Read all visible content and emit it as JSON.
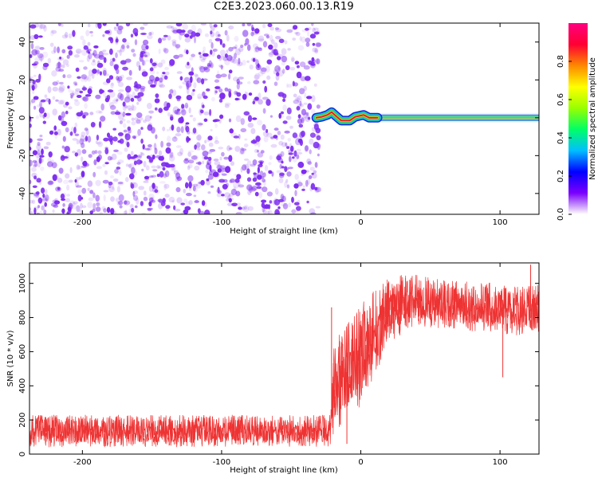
{
  "title": "C2E3.2023.060.00.13.R19",
  "colors": {
    "noise": "#7d2bf0",
    "signal_line": "#ee3333",
    "band_red": "#e8162b",
    "band_green": "#22c466",
    "band_blue": "#0a2cd8"
  },
  "chart_data": [
    {
      "type": "heatmap",
      "title": "",
      "xlabel": "Height of straight line (km)",
      "ylabel": "Frequency (Hz)",
      "xlim": [
        -238,
        128
      ],
      "ylim": [
        -51,
        50
      ],
      "xticks": [
        -200,
        -100,
        0,
        100
      ],
      "yticks": [
        -40,
        -20,
        0,
        20,
        40
      ],
      "description_regions": {
        "noise_x_range": [
          -238,
          -32
        ],
        "signal_x_range": [
          -32,
          128
        ],
        "signal_frequency_hz": 0
      },
      "colorbar": {
        "label": "Normalized spectral amplitude",
        "range": [
          0.0,
          1.0
        ],
        "ticks": [
          0.0,
          0.2,
          0.4,
          0.6,
          0.8
        ],
        "colormap": [
          "#ffffff",
          "#7b00ff",
          "#0000ff",
          "#00bfff",
          "#00ff66",
          "#99ff00",
          "#ffff00",
          "#ff8800",
          "#ff0033",
          "#ff0080"
        ]
      },
      "signal_wiggle": [
        {
          "x": -32,
          "y": 0
        },
        {
          "x": -28,
          "y": 0.5
        },
        {
          "x": -24,
          "y": 1.5
        },
        {
          "x": -21,
          "y": 3
        },
        {
          "x": -18,
          "y": 1
        },
        {
          "x": -14,
          "y": -1.5
        },
        {
          "x": -8,
          "y": -1.5
        },
        {
          "x": -4,
          "y": 0.5
        },
        {
          "x": 2,
          "y": 1.5
        },
        {
          "x": 6,
          "y": 0
        },
        {
          "x": 12,
          "y": 0
        },
        {
          "x": 128,
          "y": 0
        }
      ]
    },
    {
      "type": "line",
      "title": "",
      "xlabel": "Height of straight line (km)",
      "ylabel": "SNR (10 * v/v)",
      "xlim": [
        -238,
        128
      ],
      "ylim": [
        0,
        1120
      ],
      "xticks": [
        -200,
        -100,
        0,
        100
      ],
      "yticks": [
        0,
        200,
        400,
        600,
        800,
        1000
      ],
      "envelope": [
        {
          "x": -238,
          "low": 40,
          "high": 230
        },
        {
          "x": -22,
          "low": 40,
          "high": 230
        },
        {
          "x": -19,
          "low": 120,
          "high": 700
        },
        {
          "x": -10,
          "low": 180,
          "high": 780
        },
        {
          "x": 0,
          "low": 280,
          "high": 880
        },
        {
          "x": 10,
          "low": 460,
          "high": 960
        },
        {
          "x": 20,
          "low": 620,
          "high": 1030
        },
        {
          "x": 35,
          "low": 720,
          "high": 1060
        },
        {
          "x": 60,
          "low": 740,
          "high": 1020
        },
        {
          "x": 100,
          "low": 700,
          "high": 1000
        },
        {
          "x": 128,
          "low": 680,
          "high": 990
        }
      ],
      "outliers": [
        {
          "x": -21,
          "y": 860
        },
        {
          "x": -10,
          "y": 60
        },
        {
          "x": 102,
          "y": 450
        },
        {
          "x": 122,
          "y": 1110
        }
      ]
    }
  ]
}
